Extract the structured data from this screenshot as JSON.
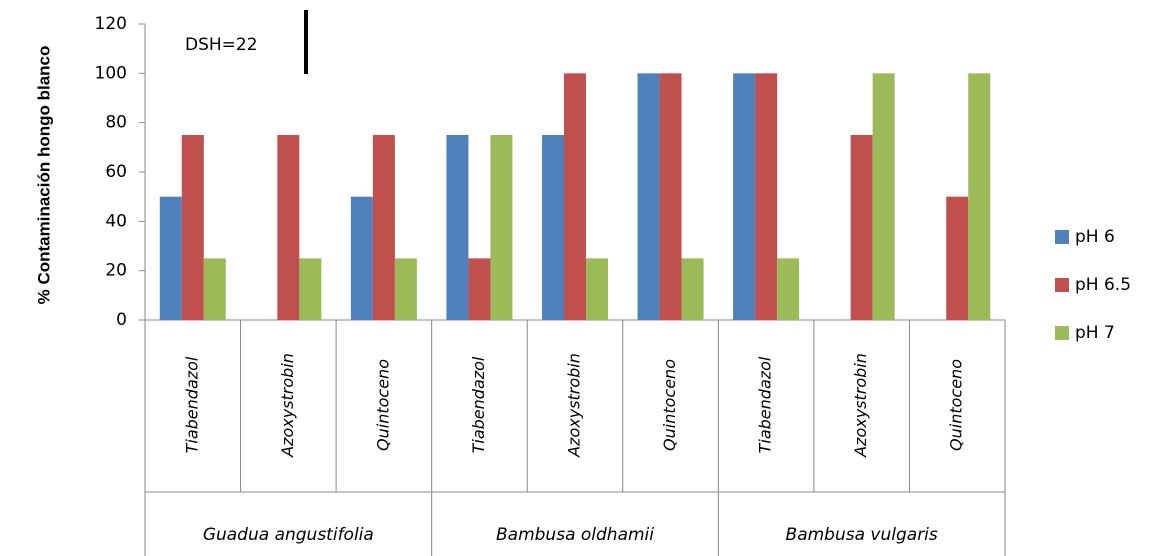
{
  "chart_data": {
    "type": "bar",
    "y_label": "% Contaminación  hongo blanco",
    "annotation": "DSH=22",
    "categories": [
      "Tiabendazol",
      "Azoxystrobin",
      "Quintoceno",
      "Tiabendazol",
      "Azoxystrobin",
      "Quintoceno",
      "Tiabendazol",
      "Azoxystrobin",
      "Quintoceno"
    ],
    "groups": [
      "Guadua angustifolia",
      "Bambusa oldhamii",
      "Bambusa vulgaris"
    ],
    "series": [
      {
        "name": "pH 6",
        "color": "#4f81bd",
        "values": [
          50,
          0,
          50,
          75,
          75,
          100,
          100,
          0,
          0
        ]
      },
      {
        "name": "pH 6.5",
        "color": "#c0504d",
        "values": [
          75,
          75,
          75,
          25,
          100,
          100,
          100,
          75,
          50
        ]
      },
      {
        "name": "pH 7",
        "color": "#9bbb59",
        "values": [
          25,
          25,
          25,
          75,
          25,
          25,
          25,
          100,
          100
        ]
      }
    ],
    "ylim": [
      0,
      120
    ],
    "yticks": [
      0,
      20,
      40,
      60,
      80,
      100,
      120
    ],
    "legend": "right"
  }
}
